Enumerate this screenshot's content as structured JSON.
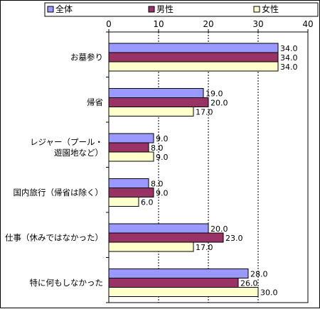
{
  "chart_data": {
    "type": "bar",
    "orientation": "horizontal",
    "categories": [
      [
        "お墓参り"
      ],
      [
        "帰省"
      ],
      [
        "レジャー（プール・",
        "遊園地など）"
      ],
      [
        "国内旅行（帰省は除く）"
      ],
      [
        "仕事（休みではなかった）"
      ],
      [
        "特に何もしなかった"
      ]
    ],
    "series": [
      {
        "name": "全体",
        "color": "#9999FF",
        "values": [
          34.0,
          19.0,
          9.0,
          8.0,
          20.0,
          28.0
        ]
      },
      {
        "name": "男性",
        "color": "#993366",
        "values": [
          34.0,
          20.0,
          8.0,
          9.0,
          23.0,
          26.0
        ]
      },
      {
        "name": "女性",
        "color": "#FFFFCC",
        "values": [
          34.0,
          17.0,
          9.0,
          6.0,
          17.0,
          30.0
        ]
      }
    ],
    "xlim": [
      0,
      40
    ],
    "xticks": [
      0,
      10,
      20,
      30,
      40
    ],
    "grid": "vertical dashed",
    "legend_position": "top",
    "value_format": "0.0"
  }
}
